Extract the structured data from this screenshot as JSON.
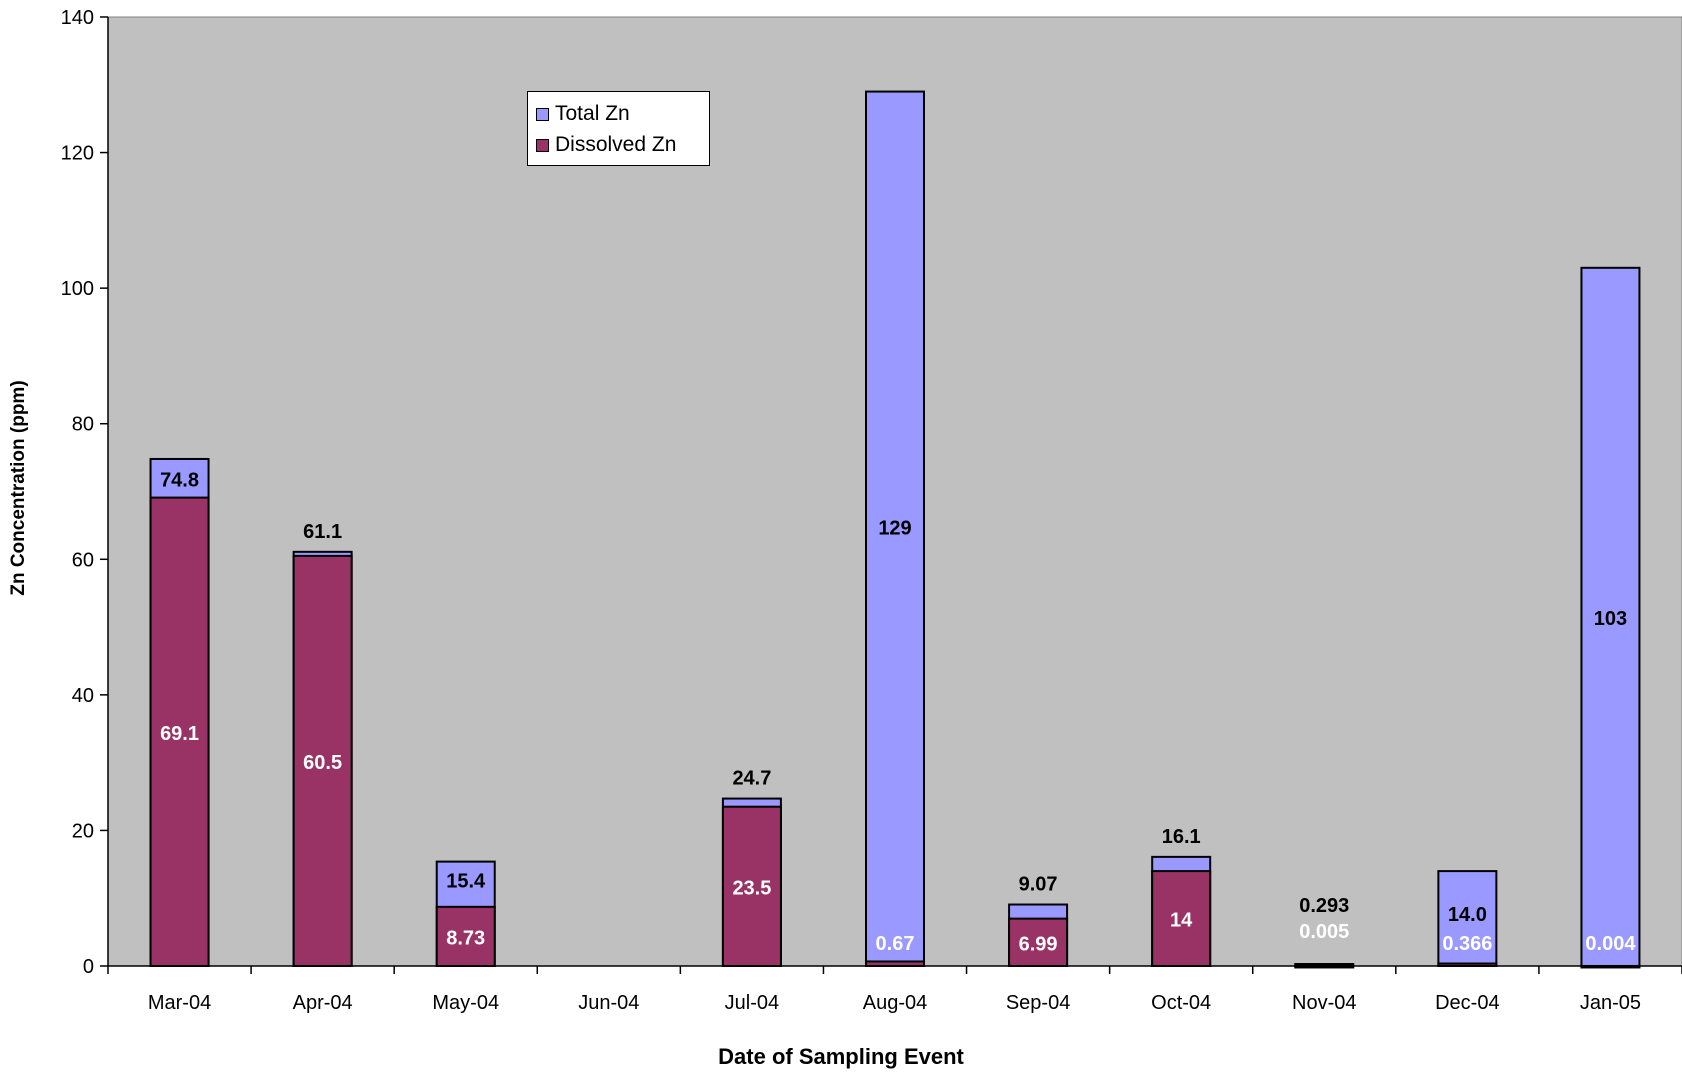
{
  "chart_data": {
    "type": "bar",
    "stacked": false,
    "overlaid": true,
    "categories": [
      "Mar-04",
      "Apr-04",
      "May-04",
      "Jun-04",
      "Jul-04",
      "Aug-04",
      "Sep-04",
      "Oct-04",
      "Nov-04",
      "Dec-04",
      "Jan-05"
    ],
    "series": [
      {
        "name": "Total Zn",
        "color": "#9999ff",
        "values": [
          74.8,
          61.1,
          15.4,
          null,
          24.7,
          129,
          9.07,
          16.1,
          0.293,
          14.0,
          103
        ],
        "labels": [
          "74.8",
          "61.1",
          "15.4",
          "",
          "24.7",
          "129",
          "9.07",
          "16.1",
          "0.293",
          "14.0",
          "103"
        ]
      },
      {
        "name": "Dissolved Zn",
        "color": "#993366",
        "values": [
          69.1,
          60.5,
          8.73,
          null,
          23.5,
          0.67,
          6.99,
          14,
          0.005,
          0.366,
          0.004
        ],
        "labels": [
          "69.1",
          "60.5",
          "8.73",
          "",
          "23.5",
          "0.67",
          "6.99",
          "14",
          "0.005",
          "0.366",
          "0.004"
        ]
      }
    ],
    "xlabel": "Date of Sampling Event",
    "ylabel": "Zn Concentration (ppm)",
    "ylim": [
      0,
      140
    ],
    "yticks": [
      "0",
      "20",
      "40",
      "60",
      "80",
      "100",
      "120",
      "140"
    ],
    "plot_background": "#c0c0c0",
    "grid": false,
    "legend_position": "top-left-inside"
  }
}
